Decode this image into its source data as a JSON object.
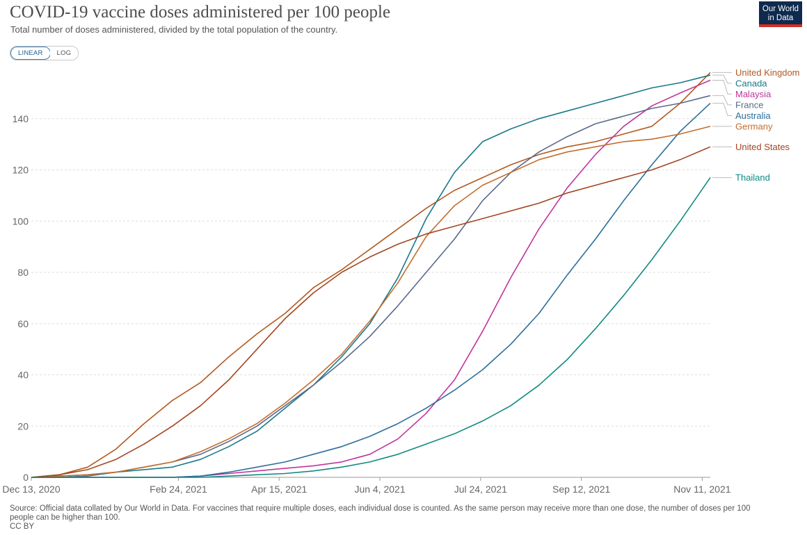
{
  "header": {
    "title": "COVID-19 vaccine doses administered per 100 people",
    "subtitle": "Total number of doses administered, divided by the total population of the country."
  },
  "logo": {
    "line1": "Our World",
    "line2": "in Data"
  },
  "scale_toggle": {
    "linear": "LINEAR",
    "log": "LOG",
    "active": "linear"
  },
  "footer": {
    "source": "Source: Official data collated by Our World in Data. For vaccines that require multiple doses, each individual dose is counted. As the same person may receive more than one dose, the number of doses per 100 people can be higher than 100.",
    "license": "CC BY"
  },
  "chart_data": {
    "type": "line",
    "title": "COVID-19 vaccine doses administered per 100 people",
    "xlabel": "",
    "ylabel": "",
    "x_range": [
      "2020-12-13",
      "2021-11-15"
    ],
    "ylim": [
      0,
      160
    ],
    "y_ticks": [
      0,
      20,
      40,
      60,
      80,
      100,
      120,
      140
    ],
    "x_ticks": [
      {
        "date": "2020-12-13",
        "label": "Dec 13, 2020"
      },
      {
        "date": "2021-02-24",
        "label": "Feb 24, 2021"
      },
      {
        "date": "2021-04-15",
        "label": "Apr 15, 2021"
      },
      {
        "date": "2021-06-04",
        "label": "Jun 4, 2021"
      },
      {
        "date": "2021-07-24",
        "label": "Jul 24, 2021"
      },
      {
        "date": "2021-09-12",
        "label": "Sep 12, 2021"
      },
      {
        "date": "2021-11-11",
        "label": "Nov 11, 2021"
      }
    ],
    "grid": "horizontal dashed",
    "legend": "right",
    "series": [
      {
        "name": "United Kingdom",
        "color": "#b3581e",
        "points": [
          [
            "2020-12-13",
            0
          ],
          [
            "2020-12-27",
            1
          ],
          [
            "2021-01-10",
            4
          ],
          [
            "2021-01-24",
            11
          ],
          [
            "2021-02-07",
            21
          ],
          [
            "2021-02-21",
            30
          ],
          [
            "2021-03-07",
            37
          ],
          [
            "2021-03-21",
            47
          ],
          [
            "2021-04-04",
            56
          ],
          [
            "2021-04-18",
            64
          ],
          [
            "2021-05-02",
            74
          ],
          [
            "2021-05-16",
            81
          ],
          [
            "2021-05-30",
            89
          ],
          [
            "2021-06-13",
            97
          ],
          [
            "2021-06-27",
            105
          ],
          [
            "2021-07-11",
            112
          ],
          [
            "2021-07-25",
            117
          ],
          [
            "2021-08-08",
            122
          ],
          [
            "2021-08-22",
            126
          ],
          [
            "2021-09-05",
            129
          ],
          [
            "2021-09-19",
            131
          ],
          [
            "2021-10-03",
            134
          ],
          [
            "2021-10-17",
            137
          ],
          [
            "2021-10-31",
            146
          ],
          [
            "2021-11-15",
            158
          ]
        ]
      },
      {
        "name": "Canada",
        "color": "#18798a",
        "points": [
          [
            "2020-12-13",
            0
          ],
          [
            "2020-12-27",
            0.5
          ],
          [
            "2021-01-10",
            1
          ],
          [
            "2021-01-24",
            2
          ],
          [
            "2021-02-07",
            3
          ],
          [
            "2021-02-21",
            4
          ],
          [
            "2021-03-07",
            7
          ],
          [
            "2021-03-21",
            12
          ],
          [
            "2021-04-04",
            18
          ],
          [
            "2021-04-18",
            27
          ],
          [
            "2021-05-02",
            36
          ],
          [
            "2021-05-16",
            47
          ],
          [
            "2021-05-30",
            60
          ],
          [
            "2021-06-13",
            78
          ],
          [
            "2021-06-27",
            101
          ],
          [
            "2021-07-11",
            119
          ],
          [
            "2021-07-25",
            131
          ],
          [
            "2021-08-08",
            136
          ],
          [
            "2021-08-22",
            140
          ],
          [
            "2021-09-05",
            143
          ],
          [
            "2021-09-19",
            146
          ],
          [
            "2021-10-03",
            149
          ],
          [
            "2021-10-17",
            152
          ],
          [
            "2021-10-31",
            154
          ],
          [
            "2021-11-15",
            157
          ]
        ]
      },
      {
        "name": "Malaysia",
        "color": "#c0349c",
        "points": [
          [
            "2020-12-13",
            0
          ],
          [
            "2021-02-21",
            0
          ],
          [
            "2021-03-07",
            0.5
          ],
          [
            "2021-03-21",
            1.5
          ],
          [
            "2021-04-04",
            2.5
          ],
          [
            "2021-04-18",
            3.5
          ],
          [
            "2021-05-02",
            4.5
          ],
          [
            "2021-05-16",
            6
          ],
          [
            "2021-05-30",
            9
          ],
          [
            "2021-06-13",
            15
          ],
          [
            "2021-06-27",
            25
          ],
          [
            "2021-07-11",
            38
          ],
          [
            "2021-07-25",
            57
          ],
          [
            "2021-08-08",
            78
          ],
          [
            "2021-08-22",
            97
          ],
          [
            "2021-09-05",
            113
          ],
          [
            "2021-09-19",
            126
          ],
          [
            "2021-10-03",
            137
          ],
          [
            "2021-10-17",
            145
          ],
          [
            "2021-10-31",
            150
          ],
          [
            "2021-11-15",
            155
          ]
        ]
      },
      {
        "name": "France",
        "color": "#586a8a",
        "points": [
          [
            "2020-12-13",
            0
          ],
          [
            "2020-12-27",
            0
          ],
          [
            "2021-01-10",
            0.5
          ],
          [
            "2021-01-24",
            2
          ],
          [
            "2021-02-07",
            4
          ],
          [
            "2021-02-21",
            6
          ],
          [
            "2021-03-07",
            9
          ],
          [
            "2021-03-21",
            14
          ],
          [
            "2021-04-04",
            20
          ],
          [
            "2021-04-18",
            28
          ],
          [
            "2021-05-02",
            36
          ],
          [
            "2021-05-16",
            45
          ],
          [
            "2021-05-30",
            55
          ],
          [
            "2021-06-13",
            67
          ],
          [
            "2021-06-27",
            80
          ],
          [
            "2021-07-11",
            93
          ],
          [
            "2021-07-25",
            108
          ],
          [
            "2021-08-08",
            119
          ],
          [
            "2021-08-22",
            127
          ],
          [
            "2021-09-05",
            133
          ],
          [
            "2021-09-19",
            138
          ],
          [
            "2021-10-03",
            141
          ],
          [
            "2021-10-17",
            144
          ],
          [
            "2021-10-31",
            146
          ],
          [
            "2021-11-15",
            149
          ]
        ]
      },
      {
        "name": "Australia",
        "color": "#2b6e9a",
        "points": [
          [
            "2020-12-13",
            0
          ],
          [
            "2021-02-21",
            0
          ],
          [
            "2021-03-07",
            0.5
          ],
          [
            "2021-03-21",
            2
          ],
          [
            "2021-04-04",
            4
          ],
          [
            "2021-04-18",
            6
          ],
          [
            "2021-05-02",
            9
          ],
          [
            "2021-05-16",
            12
          ],
          [
            "2021-05-30",
            16
          ],
          [
            "2021-06-13",
            21
          ],
          [
            "2021-06-27",
            27
          ],
          [
            "2021-07-11",
            34
          ],
          [
            "2021-07-25",
            42
          ],
          [
            "2021-08-08",
            52
          ],
          [
            "2021-08-22",
            64
          ],
          [
            "2021-09-05",
            79
          ],
          [
            "2021-09-19",
            93
          ],
          [
            "2021-10-03",
            108
          ],
          [
            "2021-10-17",
            122
          ],
          [
            "2021-10-31",
            135
          ],
          [
            "2021-11-15",
            146
          ]
        ]
      },
      {
        "name": "Germany",
        "color": "#c46d2c",
        "points": [
          [
            "2020-12-13",
            0
          ],
          [
            "2020-12-27",
            0.5
          ],
          [
            "2021-01-10",
            1
          ],
          [
            "2021-01-24",
            2
          ],
          [
            "2021-02-07",
            4
          ],
          [
            "2021-02-21",
            6
          ],
          [
            "2021-03-07",
            10
          ],
          [
            "2021-03-21",
            15
          ],
          [
            "2021-04-04",
            21
          ],
          [
            "2021-04-18",
            29
          ],
          [
            "2021-05-02",
            38
          ],
          [
            "2021-05-16",
            48
          ],
          [
            "2021-05-30",
            61
          ],
          [
            "2021-06-13",
            76
          ],
          [
            "2021-06-27",
            94
          ],
          [
            "2021-07-11",
            106
          ],
          [
            "2021-07-25",
            114
          ],
          [
            "2021-08-08",
            119
          ],
          [
            "2021-08-22",
            124
          ],
          [
            "2021-09-05",
            127
          ],
          [
            "2021-09-19",
            129
          ],
          [
            "2021-10-03",
            131
          ],
          [
            "2021-10-17",
            132
          ],
          [
            "2021-10-31",
            134
          ],
          [
            "2021-11-15",
            137
          ]
        ]
      },
      {
        "name": "United States",
        "color": "#a2451f",
        "points": [
          [
            "2020-12-13",
            0
          ],
          [
            "2020-12-27",
            1
          ],
          [
            "2021-01-10",
            3
          ],
          [
            "2021-01-24",
            7
          ],
          [
            "2021-02-07",
            13
          ],
          [
            "2021-02-21",
            20
          ],
          [
            "2021-03-07",
            28
          ],
          [
            "2021-03-21",
            38
          ],
          [
            "2021-04-04",
            50
          ],
          [
            "2021-04-18",
            62
          ],
          [
            "2021-05-02",
            72
          ],
          [
            "2021-05-16",
            80
          ],
          [
            "2021-05-30",
            86
          ],
          [
            "2021-06-13",
            91
          ],
          [
            "2021-06-27",
            95
          ],
          [
            "2021-07-11",
            98
          ],
          [
            "2021-07-25",
            101
          ],
          [
            "2021-08-08",
            104
          ],
          [
            "2021-08-22",
            107
          ],
          [
            "2021-09-05",
            111
          ],
          [
            "2021-09-19",
            114
          ],
          [
            "2021-10-03",
            117
          ],
          [
            "2021-10-17",
            120
          ],
          [
            "2021-10-31",
            124
          ],
          [
            "2021-11-15",
            129
          ]
        ]
      },
      {
        "name": "Thailand",
        "color": "#0f8a80",
        "points": [
          [
            "2020-12-13",
            0
          ],
          [
            "2021-03-07",
            0
          ],
          [
            "2021-03-21",
            0.5
          ],
          [
            "2021-04-04",
            1
          ],
          [
            "2021-04-18",
            1.5
          ],
          [
            "2021-05-02",
            2.5
          ],
          [
            "2021-05-16",
            4
          ],
          [
            "2021-05-30",
            6
          ],
          [
            "2021-06-13",
            9
          ],
          [
            "2021-06-27",
            13
          ],
          [
            "2021-07-11",
            17
          ],
          [
            "2021-07-25",
            22
          ],
          [
            "2021-08-08",
            28
          ],
          [
            "2021-08-22",
            36
          ],
          [
            "2021-09-05",
            46
          ],
          [
            "2021-09-19",
            58
          ],
          [
            "2021-10-03",
            71
          ],
          [
            "2021-10-17",
            85
          ],
          [
            "2021-10-31",
            100
          ],
          [
            "2021-11-15",
            117
          ]
        ]
      }
    ]
  }
}
